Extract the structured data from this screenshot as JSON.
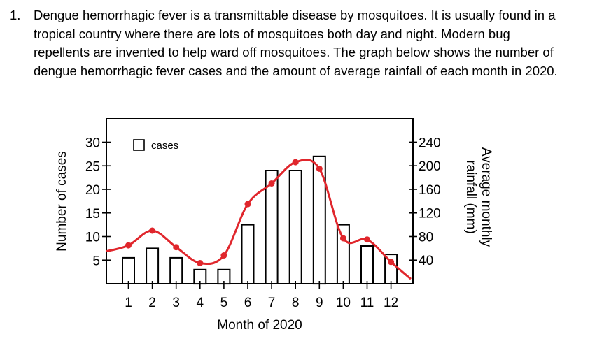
{
  "question": {
    "number": "1.",
    "text": "Dengue hemorrhagic fever is a transmittable disease by mosquitoes. It is usually found in a tropical country where there are lots of mosquitoes both day and night. Modern bug repellents are invented to help ward off mosquitoes. The graph below shows the number of dengue hemorrhagic fever cases and the amount of average rainfall of each month in 2020."
  },
  "chart_data": {
    "type": "bar",
    "title": "",
    "xlabel": "Month of 2020",
    "ylabel": "Number of cases",
    "y2label_line1": "Average monthly",
    "y2label_line2": "rainfall (mm)",
    "categories": [
      "1",
      "2",
      "3",
      "4",
      "5",
      "6",
      "7",
      "8",
      "9",
      "10",
      "11",
      "12"
    ],
    "ylim": [
      0,
      35
    ],
    "yticks": [
      5,
      10,
      15,
      20,
      25,
      30
    ],
    "y2lim": [
      0,
      280
    ],
    "y2ticks": [
      40,
      80,
      120,
      160,
      200,
      240
    ],
    "legend": "cases",
    "legend_position": "top-left",
    "series": [
      {
        "name": "cases",
        "kind": "bar",
        "values": [
          5.5,
          7.5,
          5.5,
          3,
          3,
          12.5,
          24,
          24,
          27,
          12.5,
          8,
          6.2
        ]
      },
      {
        "kind": "line",
        "axis": "right",
        "color": "#e0262c",
        "values": [
          65,
          90,
          62,
          35,
          48,
          135,
          170,
          206,
          195,
          77,
          75,
          37
        ]
      }
    ]
  }
}
